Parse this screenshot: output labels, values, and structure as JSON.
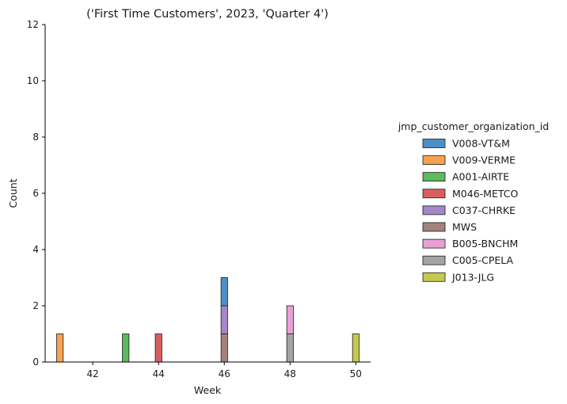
{
  "chart_data": {
    "type": "bar",
    "subtype": "stacked-histogram",
    "title": "('First Time Customers', 2023, 'Quarter 4')",
    "xlabel": "Week",
    "ylabel": "Count",
    "xlim": [
      40.55,
      50.45
    ],
    "ylim": [
      0,
      12
    ],
    "xticks": [
      42,
      44,
      46,
      48,
      50
    ],
    "yticks": [
      0,
      2,
      4,
      6,
      8,
      10,
      12
    ],
    "bin_width": 0.2,
    "legend": {
      "title": "jmp_customer_organization_id",
      "placement": "right",
      "entries": [
        {
          "label": "V008-VT&M",
          "color": "#4e8fc7"
        },
        {
          "label": "V009-VERME",
          "color": "#f7a24f"
        },
        {
          "label": "A001-AIRTE",
          "color": "#5dba5d"
        },
        {
          "label": "M046-METCO",
          "color": "#d95f5f"
        },
        {
          "label": "C037-CHRKE",
          "color": "#a486c9"
        },
        {
          "label": "MWS",
          "color": "#a2837a"
        },
        {
          "label": "B005-BNCHM",
          "color": "#ea9fd3"
        },
        {
          "label": "C005-CPELA",
          "color": "#a4a4a4"
        },
        {
          "label": "J013-JLG",
          "color": "#c6c84d"
        }
      ]
    },
    "series": [
      {
        "name": "V008-VT&M",
        "points": [
          {
            "week": 46,
            "count": 1
          }
        ]
      },
      {
        "name": "V009-VERME",
        "points": [
          {
            "week": 41,
            "count": 1
          }
        ]
      },
      {
        "name": "A001-AIRTE",
        "points": [
          {
            "week": 43,
            "count": 1
          }
        ]
      },
      {
        "name": "M046-METCO",
        "points": [
          {
            "week": 44,
            "count": 1
          }
        ]
      },
      {
        "name": "C037-CHRKE",
        "points": [
          {
            "week": 46,
            "count": 1
          }
        ]
      },
      {
        "name": "MWS",
        "points": [
          {
            "week": 46,
            "count": 1
          }
        ]
      },
      {
        "name": "B005-BNCHM",
        "points": [
          {
            "week": 48,
            "count": 1
          }
        ]
      },
      {
        "name": "C005-CPELA",
        "points": [
          {
            "week": 48,
            "count": 1
          }
        ]
      },
      {
        "name": "J013-JLG",
        "points": [
          {
            "week": 50,
            "count": 1
          }
        ]
      }
    ]
  }
}
